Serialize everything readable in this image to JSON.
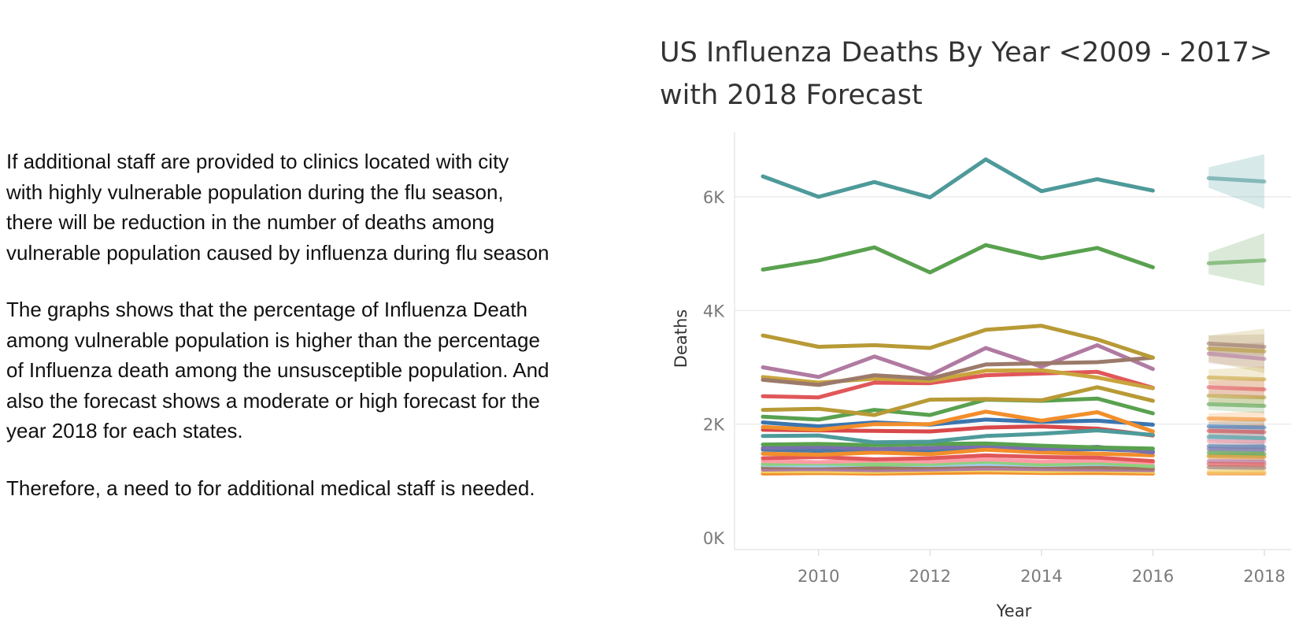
{
  "narrative": {
    "paragraphs": [
      "If additional staff are provided to clinics located with city\nwith highly vulnerable population during the flu season,\nthere will be reduction in the number of deaths among\nvulnerable population caused by influenza during flu season",
      "The graphs shows that the percentage of Influenza Death\namong vulnerable population is higher than the percentage\nof Influenza death among the unsusceptible population. And\nalso the forecast shows a moderate or high forecast for the\nyear 2018 for each states.",
      "Therefore, a need to for additional medical staff is needed."
    ]
  },
  "chart_data": {
    "type": "line",
    "title": "US Influenza Deaths By Year <2009 - 2017>\nwith 2018 Forecast",
    "xlabel": "Year",
    "ylabel": "Deaths",
    "x_tick_labels": [
      "2010",
      "2012",
      "2014",
      "2016",
      "2018"
    ],
    "y_tick_labels": [
      "0K",
      "2K",
      "4K",
      "6K"
    ],
    "x_ticks": [
      2010,
      2012,
      2014,
      2016,
      2018
    ],
    "y_ticks": [
      0,
      2000,
      4000,
      6000
    ],
    "xlim": [
      2008.5,
      2018.5
    ],
    "ylim": [
      0,
      7000
    ],
    "grid": true,
    "legend": "none",
    "x": [
      2009,
      2010,
      2011,
      2012,
      2013,
      2014,
      2015,
      2016
    ],
    "forecast_x": [
      2017,
      2018
    ],
    "series": [
      {
        "color": "#4e9a9a",
        "values": [
          6360,
          6000,
          6260,
          5990,
          6660,
          6100,
          6310,
          6110
        ],
        "forecast": [
          6330,
          6270
        ],
        "band": [
          [
            6160,
            6520
          ],
          [
            5790,
            6750
          ]
        ]
      },
      {
        "color": "#59a14f",
        "values": [
          4720,
          4880,
          5110,
          4670,
          5150,
          4920,
          5100,
          4760
        ],
        "forecast": [
          4830,
          4880
        ],
        "band": [
          [
            4640,
            5020
          ],
          [
            4430,
            5360
          ]
        ]
      },
      {
        "color": "#b89a36",
        "values": [
          3560,
          3360,
          3390,
          3340,
          3660,
          3730,
          3490,
          3170
        ],
        "forecast": [
          3330,
          3280
        ],
        "band": [
          [
            3100,
            3560
          ],
          [
            2900,
            3680
          ]
        ]
      },
      {
        "color": "#9c7a6b",
        "values": [
          2780,
          2690,
          2860,
          2800,
          3050,
          3070,
          3090,
          3170
        ],
        "forecast": [
          3420,
          3360
        ],
        "band": [
          [
            3260,
            3560
          ],
          [
            3200,
            3580
          ]
        ]
      },
      {
        "color": "#b07aa1",
        "values": [
          3000,
          2830,
          3190,
          2860,
          3340,
          3010,
          3390,
          2970
        ],
        "forecast": [
          3240,
          3150
        ],
        "band": [
          [
            3070,
            3400
          ],
          [
            2980,
            3440
          ]
        ]
      },
      {
        "color": "#c9a43d",
        "values": [
          2830,
          2730,
          2800,
          2760,
          2940,
          2950,
          2820,
          2630
        ],
        "forecast": [
          2820,
          2790
        ],
        "band": [
          [
            2700,
            2960
          ],
          [
            2610,
            3020
          ]
        ]
      },
      {
        "color": "#e15759",
        "values": [
          2490,
          2470,
          2730,
          2720,
          2860,
          2890,
          2920,
          2640
        ],
        "forecast": [
          2650,
          2610
        ],
        "band": [
          [
            2540,
            2760
          ],
          [
            2460,
            2800
          ]
        ]
      },
      {
        "color": "#b89a36",
        "values": [
          2250,
          2270,
          2160,
          2430,
          2440,
          2420,
          2650,
          2410
        ],
        "forecast": [
          2500,
          2470
        ],
        "band": [
          [
            2390,
            2610
          ],
          [
            2320,
            2650
          ]
        ]
      },
      {
        "color": "#59a14f",
        "values": [
          2130,
          2080,
          2250,
          2160,
          2430,
          2410,
          2450,
          2190
        ],
        "forecast": [
          2350,
          2320
        ],
        "band": [
          [
            2250,
            2450
          ],
          [
            2190,
            2480
          ]
        ]
      },
      {
        "color": "#f28e2b",
        "values": [
          1950,
          1900,
          2000,
          2000,
          2220,
          2060,
          2210,
          1870
        ],
        "forecast": [
          2100,
          2080
        ],
        "band": [
          [
            2010,
            2190
          ],
          [
            1950,
            2230
          ]
        ]
      },
      {
        "color": "#4e9a9a",
        "values": [
          1790,
          1800,
          1680,
          1690,
          1790,
          1830,
          1890,
          1810
        ],
        "forecast": [
          1780,
          1750
        ],
        "band": [
          [
            1690,
            1870
          ],
          [
            1630,
            1900
          ]
        ]
      },
      {
        "color": "#3b75af",
        "values": [
          2030,
          1960,
          2030,
          1990,
          2080,
          2040,
          2060,
          1990
        ],
        "forecast": [
          1960,
          1940
        ],
        "band": [
          [
            1880,
            2040
          ],
          [
            1820,
            2080
          ]
        ]
      },
      {
        "color": "#d9484a",
        "values": [
          1900,
          1890,
          1880,
          1870,
          1940,
          1960,
          1920,
          1800
        ],
        "forecast": [
          1880,
          1860
        ],
        "band": [
          [
            1800,
            1960
          ],
          [
            1750,
            2000
          ]
        ]
      },
      {
        "color": "#59a14f",
        "values": [
          1640,
          1650,
          1630,
          1650,
          1660,
          1620,
          1590,
          1570
        ],
        "forecast": [
          1500,
          1480
        ],
        "band": [
          [
            1440,
            1560
          ],
          [
            1400,
            1590
          ]
        ]
      },
      {
        "color": "#7b6fb0",
        "values": [
          1580,
          1600,
          1560,
          1580,
          1620,
          1560,
          1600,
          1500
        ],
        "forecast": [
          1560,
          1550
        ],
        "band": [
          [
            1500,
            1620
          ],
          [
            1460,
            1650
          ]
        ]
      },
      {
        "color": "#f28e2b",
        "values": [
          1480,
          1460,
          1500,
          1470,
          1550,
          1500,
          1480,
          1450
        ],
        "forecast": [
          1430,
          1420
        ],
        "band": [
          [
            1380,
            1480
          ],
          [
            1340,
            1510
          ]
        ]
      },
      {
        "color": "#4e79a7",
        "values": [
          1550,
          1530,
          1560,
          1520,
          1600,
          1540,
          1560,
          1520
        ],
        "forecast": [
          1610,
          1600
        ],
        "band": [
          [
            1550,
            1670
          ],
          [
            1510,
            1700
          ]
        ]
      },
      {
        "color": "#e15759",
        "values": [
          1400,
          1420,
          1380,
          1400,
          1450,
          1420,
          1410,
          1350
        ],
        "forecast": [
          1300,
          1290
        ],
        "band": [
          [
            1250,
            1350
          ],
          [
            1220,
            1380
          ]
        ]
      },
      {
        "color": "#ff9da7",
        "values": [
          1350,
          1330,
          1360,
          1340,
          1380,
          1340,
          1360,
          1320
        ],
        "forecast": [
          1700,
          1690
        ],
        "band": [
          [
            1640,
            1760
          ],
          [
            1600,
            1790
          ]
        ]
      },
      {
        "color": "#8cd17d",
        "values": [
          1300,
          1310,
          1290,
          1300,
          1340,
          1290,
          1320,
          1260
        ],
        "forecast": [
          1450,
          1440
        ],
        "band": [
          [
            1400,
            1500
          ],
          [
            1370,
            1520
          ]
        ]
      },
      {
        "color": "#a0cbe8",
        "values": [
          1280,
          1270,
          1290,
          1280,
          1300,
          1280,
          1300,
          1270
        ],
        "forecast": [
          1750,
          1740
        ],
        "band": [
          [
            1690,
            1810
          ],
          [
            1650,
            1840
          ]
        ]
      },
      {
        "color": "#9d7660",
        "values": [
          1240,
          1250,
          1230,
          1240,
          1270,
          1250,
          1240,
          1220
        ],
        "forecast": [
          1240,
          1230
        ],
        "band": [
          [
            1200,
            1280
          ],
          [
            1170,
            1300
          ]
        ]
      },
      {
        "color": "#b07aa1",
        "values": [
          1200,
          1210,
          1190,
          1200,
          1220,
          1210,
          1200,
          1190
        ],
        "forecast": [
          1350,
          1340
        ],
        "band": [
          [
            1310,
            1390
          ],
          [
            1280,
            1410
          ]
        ]
      },
      {
        "color": "#f1ce63",
        "values": [
          1170,
          1170,
          1160,
          1180,
          1190,
          1170,
          1180,
          1160
        ],
        "forecast": [
          1160,
          1160
        ],
        "band": [
          [
            1130,
            1190
          ],
          [
            1110,
            1210
          ]
        ]
      },
      {
        "color": "#f28e2b",
        "values": [
          1130,
          1140,
          1130,
          1140,
          1150,
          1140,
          1140,
          1130
        ],
        "forecast": [
          1130,
          1130
        ],
        "band": [
          [
            1110,
            1150
          ],
          [
            1100,
            1160
          ]
        ]
      }
    ]
  }
}
